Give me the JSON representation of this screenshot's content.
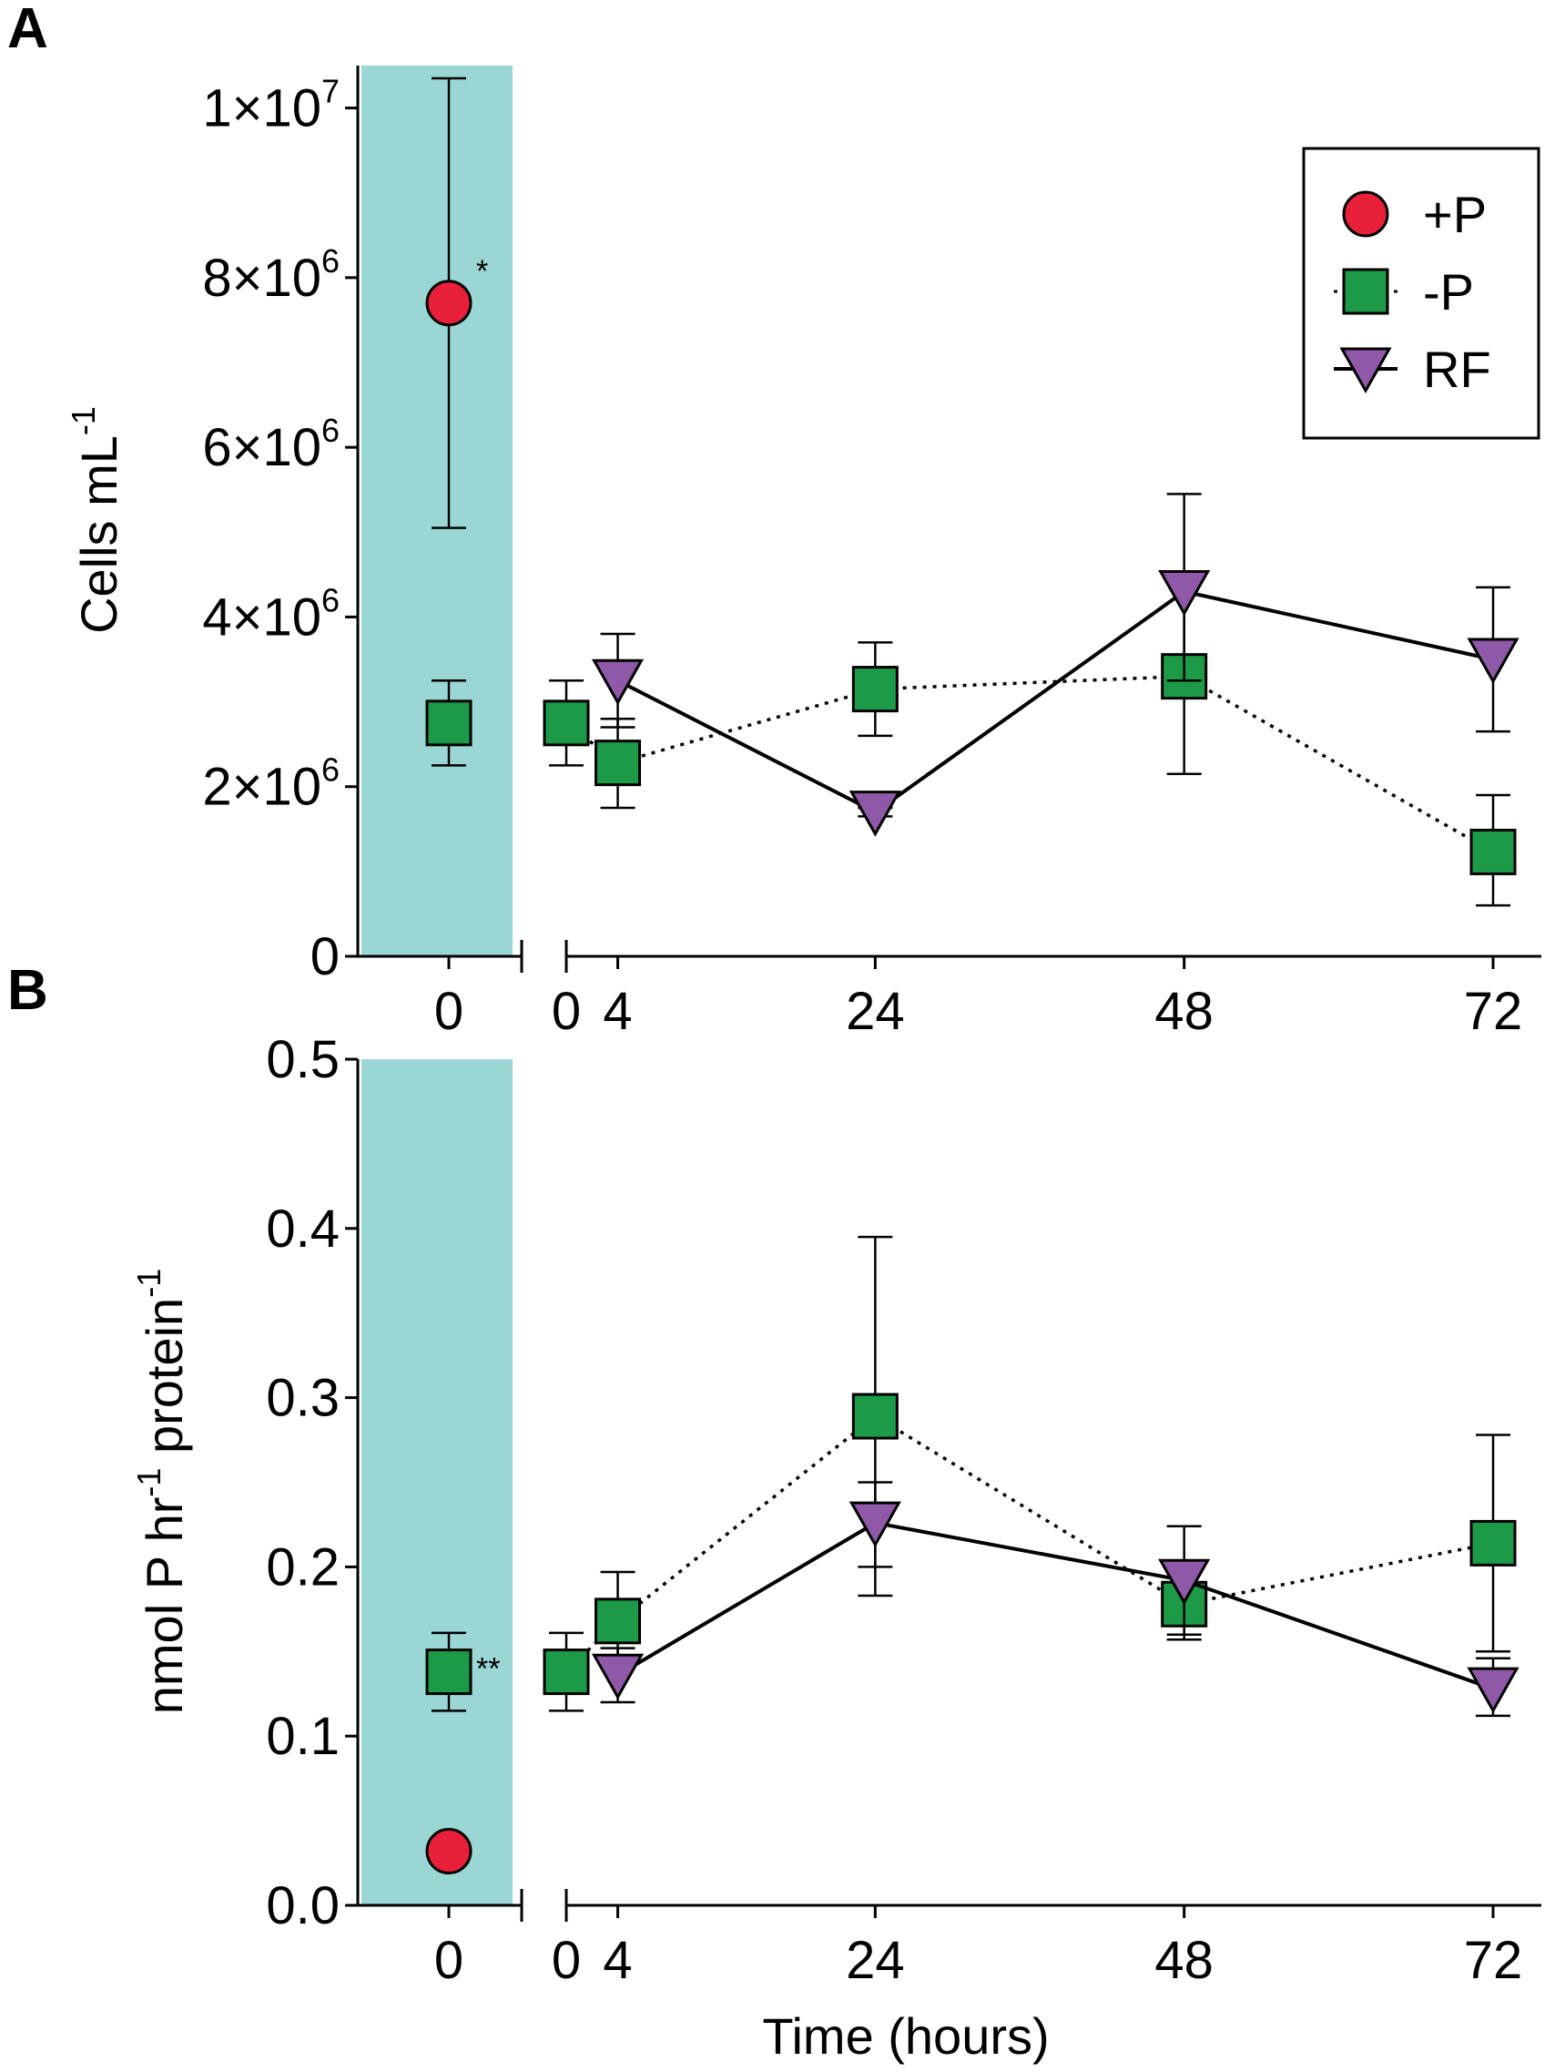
{
  "colors": {
    "highlight": "#9ad6d4",
    "plus_p": "#e8203a",
    "minus_p": "#1d9a48",
    "rf": "#8f59a8",
    "axis": "#000000"
  },
  "legend": {
    "items": [
      {
        "key": "plus_p",
        "label": "+P",
        "marker": "circle",
        "line": "none"
      },
      {
        "key": "minus_p",
        "label": "-P",
        "marker": "square",
        "line": "dotted"
      },
      {
        "key": "rf",
        "label": "RF",
        "marker": "triangle-down",
        "line": "solid"
      }
    ]
  },
  "chart_data": [
    {
      "type": "scatter",
      "panel_label": "A",
      "ylabel": "Cells mL",
      "ylabel_sup": "-1",
      "xlabel": "",
      "ylim": [
        0,
        10500000
      ],
      "y_ticks": [
        {
          "value": 0,
          "base": "0",
          "exp": ""
        },
        {
          "value": 2000000,
          "base": "2×10",
          "exp": "6"
        },
        {
          "value": 4000000,
          "base": "4×10",
          "exp": "6"
        },
        {
          "value": 6000000,
          "base": "6×10",
          "exp": "6"
        },
        {
          "value": 8000000,
          "base": "8×10",
          "exp": "6"
        },
        {
          "value": 10000000,
          "base": "1×10",
          "exp": "7"
        }
      ],
      "baseline": {
        "x_tick": "0",
        "series": [
          {
            "name": "+P",
            "mean": 7700000,
            "err_low": 5050000,
            "err_high": 10350000,
            "annotation": "*"
          },
          {
            "name": "-P",
            "mean": 2750000,
            "err_low": 2250000,
            "err_high": 3250000
          }
        ]
      },
      "timecourse": {
        "x_ticks": [
          0,
          4,
          24,
          48,
          72
        ],
        "xlim": [
          0,
          72
        ],
        "series": [
          {
            "name": "-P",
            "x": [
              0,
              4,
              24,
              48,
              72
            ],
            "y": [
              2750000,
              2280000,
              3150000,
              3300000,
              1230000
            ],
            "err_low": [
              2250000,
              1750000,
              2600000,
              2150000,
              600000
            ],
            "err_high": [
              3250000,
              2800000,
              3700000,
              4450000,
              1900000
            ]
          },
          {
            "name": "RF",
            "x": [
              4,
              24,
              48,
              72
            ],
            "y": [
              3250000,
              1700000,
              4300000,
              3500000
            ],
            "err_low": [
              2700000,
              1650000,
              3250000,
              2650000
            ],
            "err_high": [
              3800000,
              1750000,
              5450000,
              4350000
            ]
          }
        ]
      }
    },
    {
      "type": "scatter",
      "panel_label": "B",
      "ylabel": "nmol P hr",
      "ylabel_sup1": "-1",
      "ylabel_mid": " protein",
      "ylabel_sup2": "-1",
      "xlabel": "Time (hours)",
      "ylim": [
        0,
        0.5
      ],
      "y_ticks": [
        {
          "value": 0,
          "base": "0.0",
          "exp": ""
        },
        {
          "value": 0.1,
          "base": "0.1",
          "exp": ""
        },
        {
          "value": 0.2,
          "base": "0.2",
          "exp": ""
        },
        {
          "value": 0.3,
          "base": "0.3",
          "exp": ""
        },
        {
          "value": 0.4,
          "base": "0.4",
          "exp": ""
        },
        {
          "value": 0.5,
          "base": "0.5",
          "exp": ""
        }
      ],
      "baseline": {
        "x_tick": "0",
        "series": [
          {
            "name": "+P",
            "mean": 0.032,
            "err_low": 0.032,
            "err_high": 0.032
          },
          {
            "name": "-P",
            "mean": 0.138,
            "err_low": 0.115,
            "err_high": 0.161,
            "annotation": "**"
          }
        ]
      },
      "timecourse": {
        "x_ticks": [
          0,
          4,
          24,
          48,
          72
        ],
        "xlim": [
          0,
          72
        ],
        "series": [
          {
            "name": "-P",
            "x": [
              0,
              4,
              24,
              48,
              72
            ],
            "y": [
              0.138,
              0.168,
              0.289,
              0.178,
              0.214
            ],
            "err_low": [
              0.115,
              0.14,
              0.183,
              0.157,
              0.15
            ],
            "err_high": [
              0.161,
              0.197,
              0.395,
              0.198,
              0.278
            ]
          },
          {
            "name": "RF",
            "x": [
              4,
              24,
              48,
              72
            ],
            "y": [
              0.136,
              0.226,
              0.192,
              0.128
            ],
            "err_low": [
              0.12,
              0.2,
              0.16,
              0.112
            ],
            "err_high": [
              0.152,
              0.25,
              0.224,
              0.146
            ]
          }
        ]
      }
    }
  ]
}
